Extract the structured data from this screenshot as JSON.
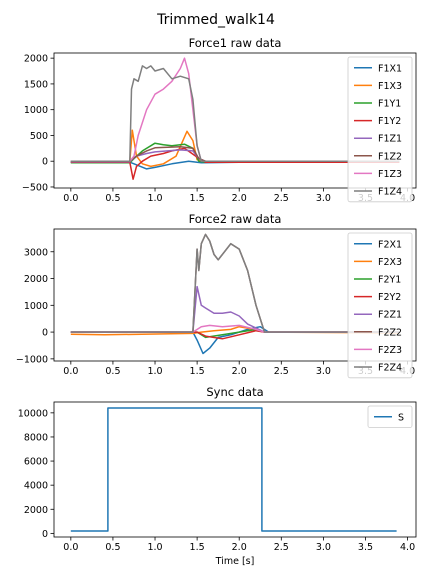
{
  "figure": {
    "suptitle": "Trimmed_walk14"
  },
  "chart_data": [
    {
      "type": "line",
      "title": "Force1 raw data",
      "xlabel": "",
      "ylabel": "",
      "xlim": [
        -0.2,
        4.1
      ],
      "ylim": [
        -520,
        2100
      ],
      "xticks": [
        0.0,
        0.5,
        1.0,
        1.5,
        2.0,
        2.5,
        3.0,
        3.5,
        4.0
      ],
      "xtick_labels": [
        "0.0",
        "0.5",
        "1.0",
        "1.5",
        "2.0",
        "2.5",
        "3.0",
        "3.5",
        "4.0"
      ],
      "yticks": [
        -500,
        0,
        500,
        1000,
        1500,
        2000
      ],
      "ytick_labels": [
        "−500",
        "0",
        "500",
        "1000",
        "1500",
        "2000"
      ],
      "legend": "upper right",
      "series": [
        {
          "name": "F1X1",
          "color": "#1f77b4",
          "x": [
            0.0,
            0.7,
            0.75,
            0.9,
            1.0,
            1.2,
            1.4,
            1.5,
            1.55,
            2.0,
            3.0,
            3.9
          ],
          "y": [
            -20,
            -20,
            -50,
            -150,
            -120,
            -50,
            0,
            -20,
            -30,
            -20,
            -20,
            -20
          ]
        },
        {
          "name": "F1X3",
          "color": "#ff7f0e",
          "x": [
            0.0,
            0.7,
            0.73,
            0.78,
            0.85,
            0.95,
            1.1,
            1.25,
            1.38,
            1.45,
            1.5,
            1.55,
            2.0,
            3.0,
            3.9
          ],
          "y": [
            -10,
            -10,
            600,
            100,
            -50,
            -100,
            -50,
            100,
            580,
            400,
            30,
            0,
            0,
            0,
            0
          ]
        },
        {
          "name": "F1Y1",
          "color": "#2ca02c",
          "x": [
            0.0,
            0.7,
            0.75,
            0.85,
            1.0,
            1.1,
            1.2,
            1.35,
            1.45,
            1.52,
            1.6,
            3.9
          ],
          "y": [
            -30,
            -30,
            50,
            200,
            350,
            320,
            300,
            330,
            250,
            0,
            -20,
            -20
          ]
        },
        {
          "name": "F1Y2",
          "color": "#d62728",
          "x": [
            0.0,
            0.7,
            0.74,
            0.78,
            0.85,
            0.95,
            1.1,
            1.2,
            1.35,
            1.5,
            1.6,
            3.9
          ],
          "y": [
            -20,
            -20,
            -350,
            -100,
            0,
            100,
            150,
            200,
            250,
            80,
            -20,
            -20
          ]
        },
        {
          "name": "F1Z1",
          "color": "#9467bd",
          "x": [
            0.0,
            0.7,
            0.78,
            0.9,
            1.0,
            1.15,
            1.3,
            1.45,
            1.52,
            1.6,
            3.9
          ],
          "y": [
            -10,
            -10,
            100,
            150,
            180,
            200,
            220,
            200,
            50,
            0,
            0
          ]
        },
        {
          "name": "F1Z2",
          "color": "#8c564b",
          "x": [
            0.0,
            0.7,
            0.78,
            0.9,
            1.0,
            1.15,
            1.3,
            1.45,
            1.52,
            1.6,
            3.9
          ],
          "y": [
            0,
            0,
            100,
            200,
            260,
            270,
            280,
            250,
            50,
            0,
            0
          ]
        },
        {
          "name": "F1Z3",
          "color": "#e377c2",
          "x": [
            0.0,
            0.7,
            0.75,
            0.8,
            0.9,
            1.0,
            1.1,
            1.2,
            1.3,
            1.35,
            1.4,
            1.45,
            1.5,
            1.55,
            3.9
          ],
          "y": [
            0,
            0,
            100,
            500,
            1000,
            1300,
            1400,
            1550,
            1800,
            2000,
            1700,
            1000,
            300,
            0,
            0
          ]
        },
        {
          "name": "F1Z4",
          "color": "#7f7f7f",
          "x": [
            0.0,
            0.7,
            0.72,
            0.75,
            0.8,
            0.85,
            0.9,
            0.95,
            1.0,
            1.1,
            1.2,
            1.3,
            1.4,
            1.45,
            1.5,
            1.55,
            3.9
          ],
          "y": [
            0,
            0,
            1400,
            1600,
            1550,
            1850,
            1800,
            1850,
            1750,
            1800,
            1600,
            1650,
            1600,
            1200,
            300,
            0,
            0
          ]
        }
      ]
    },
    {
      "type": "line",
      "title": "Force2 raw data",
      "xlabel": "",
      "ylabel": "",
      "xlim": [
        -0.2,
        4.1
      ],
      "ylim": [
        -1080,
        3850
      ],
      "xticks": [
        0.0,
        0.5,
        1.0,
        1.5,
        2.0,
        2.5,
        3.0,
        3.5,
        4.0
      ],
      "xtick_labels": [
        "0.0",
        "0.5",
        "1.0",
        "1.5",
        "2.0",
        "2.5",
        "3.0",
        "3.5",
        "4.0"
      ],
      "yticks": [
        -1000,
        0,
        1000,
        2000,
        3000
      ],
      "ytick_labels": [
        "−1000",
        "0",
        "1000",
        "2000",
        "3000"
      ],
      "legend": "upper right",
      "series": [
        {
          "name": "F2X1",
          "color": "#1f77b4",
          "x": [
            0.0,
            1.45,
            1.5,
            1.57,
            1.65,
            1.75,
            1.9,
            2.1,
            2.25,
            2.35,
            3.9
          ],
          "y": [
            0,
            0,
            -300,
            -800,
            -600,
            -200,
            -100,
            100,
            200,
            0,
            0
          ]
        },
        {
          "name": "F2X3",
          "color": "#ff7f0e",
          "x": [
            0.0,
            0.4,
            1.45,
            1.55,
            1.7,
            1.9,
            2.0,
            2.1,
            2.3,
            3.9
          ],
          "y": [
            -80,
            -100,
            -50,
            0,
            50,
            100,
            200,
            150,
            0,
            -30
          ]
        },
        {
          "name": "F2Y1",
          "color": "#2ca02c",
          "x": [
            0.0,
            1.5,
            1.6,
            1.8,
            2.0,
            2.2,
            2.3,
            3.9
          ],
          "y": [
            0,
            0,
            -200,
            -100,
            0,
            100,
            0,
            0
          ]
        },
        {
          "name": "F2Y2",
          "color": "#d62728",
          "x": [
            0.0,
            1.5,
            1.6,
            1.8,
            2.0,
            2.2,
            2.3,
            3.9
          ],
          "y": [
            0,
            0,
            -150,
            -250,
            -100,
            50,
            0,
            0
          ]
        },
        {
          "name": "F2Z1",
          "color": "#9467bd",
          "x": [
            0.0,
            1.45,
            1.5,
            1.55,
            1.6,
            1.7,
            1.8,
            1.9,
            2.0,
            2.1,
            2.3,
            3.9
          ],
          "y": [
            0,
            0,
            1700,
            1000,
            900,
            700,
            700,
            750,
            600,
            300,
            0,
            0
          ]
        },
        {
          "name": "F2Z2",
          "color": "#8c564b",
          "x": [
            0.0,
            1.45,
            1.5,
            1.52,
            1.55,
            1.6,
            1.65,
            1.7,
            1.75,
            1.8,
            1.9,
            2.0,
            2.1,
            2.2,
            2.3,
            3.9
          ],
          "y": [
            0,
            0,
            3100,
            2300,
            3300,
            3650,
            3400,
            2900,
            2700,
            2900,
            3300,
            3100,
            2300,
            1000,
            0,
            0
          ]
        },
        {
          "name": "F2Z3",
          "color": "#e377c2",
          "x": [
            0.0,
            1.45,
            1.55,
            1.65,
            1.8,
            2.0,
            2.2,
            2.3,
            3.9
          ],
          "y": [
            0,
            0,
            200,
            250,
            200,
            250,
            100,
            0,
            0
          ]
        },
        {
          "name": "F2Z4",
          "color": "#7f7f7f",
          "x": [
            0.0,
            1.45,
            1.5,
            1.52,
            1.55,
            1.6,
            1.65,
            1.7,
            1.75,
            1.8,
            1.9,
            2.0,
            2.1,
            2.2,
            2.3,
            3.9
          ],
          "y": [
            0,
            0,
            3100,
            2300,
            3300,
            3650,
            3400,
            2900,
            2700,
            2900,
            3300,
            3100,
            2300,
            1000,
            0,
            0
          ]
        }
      ]
    },
    {
      "type": "line",
      "title": "Sync data",
      "xlabel": "Time [s]",
      "ylabel": "",
      "xlim": [
        -0.2,
        4.1
      ],
      "ylim": [
        -300,
        10900
      ],
      "xticks": [
        0.0,
        0.5,
        1.0,
        1.5,
        2.0,
        2.5,
        3.0,
        3.5,
        4.0
      ],
      "xtick_labels": [
        "0.0",
        "0.5",
        "1.0",
        "1.5",
        "2.0",
        "2.5",
        "3.0",
        "3.5",
        "4.0"
      ],
      "yticks": [
        0,
        2000,
        4000,
        6000,
        8000,
        10000
      ],
      "ytick_labels": [
        "0",
        "2000",
        "4000",
        "6000",
        "8000",
        "10000"
      ],
      "legend": "upper right",
      "series": [
        {
          "name": "S",
          "color": "#1f77b4",
          "x": [
            0.0,
            0.44,
            0.44,
            2.27,
            2.27,
            3.87
          ],
          "y": [
            200,
            200,
            10400,
            10400,
            200,
            200
          ]
        }
      ]
    }
  ]
}
